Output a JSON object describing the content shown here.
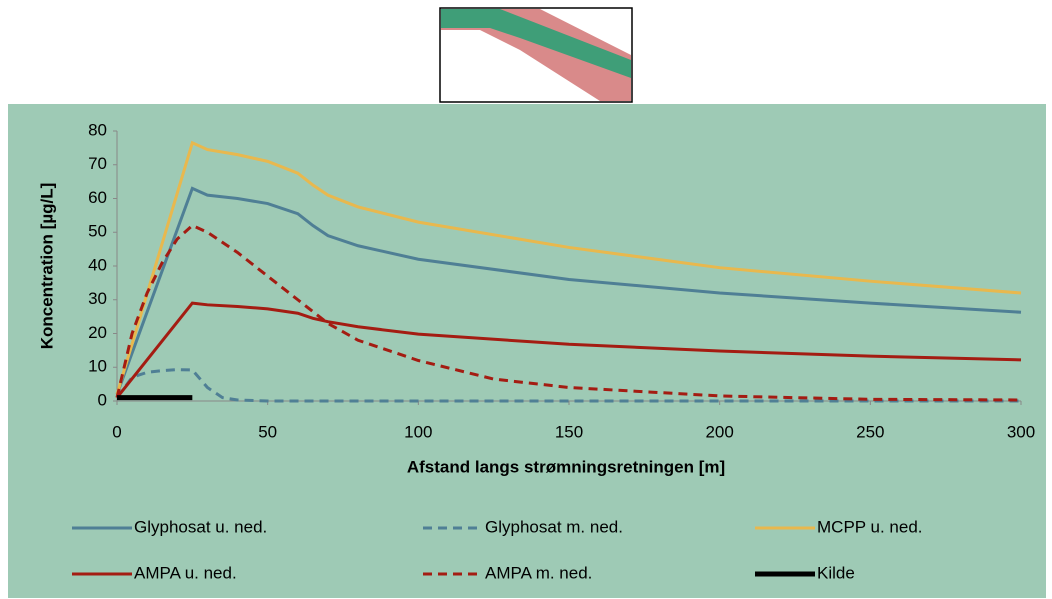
{
  "chart_data": {
    "type": "line",
    "xlabel": "Afstand langs strømningsretningen [m]",
    "ylabel": "Koncentration [µg/L]",
    "xlim": [
      0,
      300
    ],
    "xticks": [
      0,
      50,
      100,
      150,
      200,
      250,
      300
    ],
    "ylim": [
      0,
      80
    ],
    "yticks": [
      0,
      10,
      20,
      30,
      40,
      50,
      60,
      70,
      80
    ],
    "series": [
      {
        "name": "Glyphosat u. ned.",
        "color": "#4f7f95",
        "dash": false,
        "x": [
          0,
          25,
          30,
          40,
          50,
          60,
          65,
          70,
          80,
          100,
          150,
          200,
          250,
          300
        ],
        "values": [
          2,
          63,
          61,
          60,
          58.5,
          55.5,
          52,
          49,
          46,
          42,
          36,
          32,
          29,
          26.3
        ]
      },
      {
        "name": "Glyphosat m. ned.",
        "color": "#4f7f95",
        "dash": true,
        "x": [
          0,
          5,
          10,
          15,
          20,
          25,
          30,
          35,
          40,
          50,
          300
        ],
        "values": [
          1,
          7,
          8.5,
          9,
          9.3,
          9.2,
          4,
          1,
          0.3,
          0,
          0
        ]
      },
      {
        "name": "MCPP u. ned.",
        "color": "#e8b84e",
        "dash": false,
        "x": [
          0,
          25,
          30,
          40,
          50,
          60,
          65,
          70,
          80,
          100,
          150,
          200,
          250,
          300
        ],
        "values": [
          2,
          76.5,
          74.5,
          73,
          71,
          67.5,
          64,
          61,
          57.5,
          53,
          45.5,
          39.5,
          35.5,
          32
        ]
      },
      {
        "name": "AMPA u. ned.",
        "color": "#a41c12",
        "dash": false,
        "x": [
          0,
          25,
          30,
          40,
          50,
          60,
          65,
          70,
          80,
          100,
          150,
          200,
          250,
          300
        ],
        "values": [
          1,
          29,
          28.5,
          28,
          27.3,
          26,
          24.5,
          23.5,
          22,
          19.8,
          16.8,
          14.8,
          13.3,
          12.2
        ]
      },
      {
        "name": "AMPA m. ned.",
        "color": "#a41c12",
        "dash": true,
        "x": [
          0,
          5,
          10,
          15,
          20,
          25,
          30,
          40,
          50,
          60,
          70,
          80,
          100,
          125,
          150,
          200,
          250,
          300
        ],
        "values": [
          1,
          20,
          32,
          41,
          48,
          52,
          50,
          44,
          37,
          30,
          23,
          18,
          12,
          6.5,
          4,
          1.5,
          0.5,
          0.3
        ]
      },
      {
        "name": "Kilde",
        "color": "#000000",
        "dash": false,
        "x": [
          0,
          25
        ],
        "values": [
          1,
          1
        ]
      }
    ]
  }
}
